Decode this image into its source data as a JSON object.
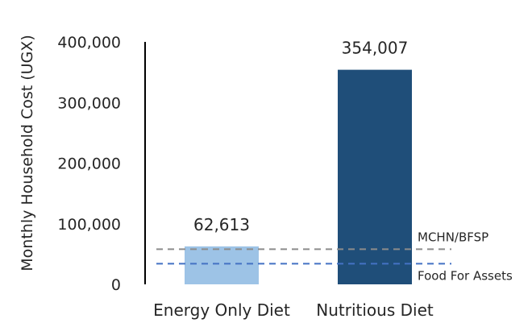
{
  "chart_data": {
    "type": "bar",
    "categories": [
      "Energy Only Diet",
      "Nutritious Diet"
    ],
    "values": [
      62613,
      354007
    ],
    "value_labels": [
      "62,613",
      "354,007"
    ],
    "colors": [
      "#9dc3e6",
      "#1f4e79"
    ],
    "ylabel": "Monthly Household Cost (UGX)",
    "ylim": [
      0,
      400000
    ],
    "yticks": [
      0,
      100000,
      200000,
      300000,
      400000
    ],
    "ytick_labels": [
      "0",
      "100,000",
      "200,000",
      "300,000",
      "400,000"
    ],
    "grid": false,
    "reference_lines": [
      {
        "label": "MCHN/BFSP",
        "value": 58000,
        "color": "#8c8c8c",
        "style": "dashed"
      },
      {
        "label": "Food For Assets",
        "value": 34000,
        "color": "#4472c4",
        "style": "dashed"
      }
    ]
  }
}
